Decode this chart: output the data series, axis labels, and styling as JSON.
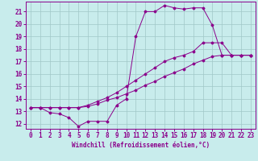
{
  "background_color": "#c8ecec",
  "line_color": "#8B008B",
  "grid_color": "#a0c8c8",
  "xlabel": "Windchill (Refroidissement éolien,°C)",
  "xlabel_fontsize": 5.5,
  "tick_fontsize": 5.5,
  "xlim": [
    -0.5,
    23.5
  ],
  "ylim": [
    11.6,
    21.8
  ],
  "yticks": [
    12,
    13,
    14,
    15,
    16,
    17,
    18,
    19,
    20,
    21
  ],
  "xticks": [
    0,
    1,
    2,
    3,
    4,
    5,
    6,
    7,
    8,
    9,
    10,
    11,
    12,
    13,
    14,
    15,
    16,
    17,
    18,
    19,
    20,
    21,
    22,
    23
  ],
  "line1_x": [
    0,
    1,
    2,
    3,
    4,
    5,
    6,
    7,
    8,
    9,
    10,
    11,
    12,
    13,
    14,
    15,
    16,
    17,
    18,
    19,
    20,
    21,
    22,
    23
  ],
  "line1_y": [
    13.3,
    13.3,
    12.9,
    12.8,
    12.5,
    11.8,
    12.2,
    12.2,
    12.2,
    13.5,
    14.0,
    19.0,
    21.0,
    21.0,
    21.5,
    21.3,
    21.2,
    21.3,
    21.3,
    19.9,
    17.5,
    17.5,
    17.5,
    17.5
  ],
  "line2_x": [
    0,
    1,
    2,
    3,
    4,
    5,
    6,
    7,
    8,
    9,
    10,
    11,
    12,
    13,
    14,
    15,
    16,
    17,
    18,
    19,
    20,
    21,
    22,
    23
  ],
  "line2_y": [
    13.3,
    13.3,
    13.3,
    13.3,
    13.3,
    13.3,
    13.4,
    13.6,
    13.9,
    14.1,
    14.4,
    14.7,
    15.1,
    15.4,
    15.8,
    16.1,
    16.4,
    16.8,
    17.1,
    17.4,
    17.5,
    17.5,
    17.5,
    17.5
  ],
  "line3_x": [
    0,
    1,
    2,
    3,
    4,
    5,
    6,
    7,
    8,
    9,
    10,
    11,
    12,
    13,
    14,
    15,
    16,
    17,
    18,
    19,
    20,
    21,
    22,
    23
  ],
  "line3_y": [
    13.3,
    13.3,
    13.3,
    13.3,
    13.3,
    13.3,
    13.5,
    13.8,
    14.1,
    14.5,
    15.0,
    15.5,
    16.0,
    16.5,
    17.0,
    17.3,
    17.5,
    17.8,
    18.5,
    18.5,
    18.5,
    17.5,
    17.5,
    17.5
  ]
}
